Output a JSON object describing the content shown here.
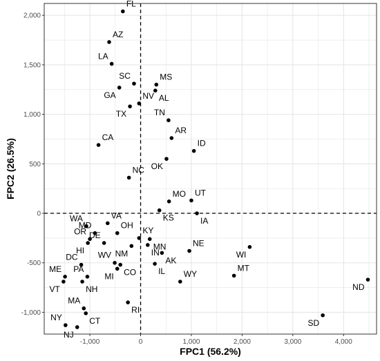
{
  "chart_data": {
    "type": "scatter",
    "xlabel": "FPC1 (56.2%)",
    "ylabel": "FPC2 (26.5%)",
    "xlim": [
      -1900,
      4650
    ],
    "ylim": [
      -1220,
      2120
    ],
    "x_ticks": [
      -1000,
      0,
      1000,
      2000,
      3000,
      4000
    ],
    "x_tick_labels": [
      "-1,000",
      "0",
      "1,000",
      "2,000",
      "3,000",
      "4,000"
    ],
    "y_ticks": [
      -1000,
      -500,
      0,
      500,
      1000,
      1500,
      2000
    ],
    "y_tick_labels": [
      "-1,000",
      "-500",
      "0",
      "500",
      "1,000",
      "1,500",
      "2,000"
    ],
    "reference_lines": {
      "x": 0,
      "y": 0,
      "style": "dashed"
    },
    "grid": true,
    "colors": {
      "points": "#000000",
      "grid": "#e5e5e5",
      "panel_border": "#333333"
    },
    "points": [
      {
        "label": "FL",
        "x": -350,
        "y": 2040,
        "label_pos": "top-right"
      },
      {
        "label": "AZ",
        "x": -620,
        "y": 1730,
        "label_pos": "top-right"
      },
      {
        "label": "LA",
        "x": -570,
        "y": 1510,
        "label_pos": "top-left"
      },
      {
        "label": "SC",
        "x": -130,
        "y": 1310,
        "label_pos": "top-left"
      },
      {
        "label": "MS",
        "x": 310,
        "y": 1300,
        "label_pos": "top-right"
      },
      {
        "label": "AL",
        "x": 290,
        "y": 1240,
        "label_pos": "bottom-right"
      },
      {
        "label": "GA",
        "x": -420,
        "y": 1270,
        "label_pos": "bottom-left"
      },
      {
        "label": "NV",
        "x": -30,
        "y": 1110,
        "label_pos": "top-right"
      },
      {
        "label": "TX",
        "x": -210,
        "y": 1080,
        "label_pos": "bottom-left"
      },
      {
        "label": "TN",
        "x": 550,
        "y": 940,
        "label_pos": "top-left"
      },
      {
        "label": "AR",
        "x": 610,
        "y": 760,
        "label_pos": "top-right"
      },
      {
        "label": "CA",
        "x": -830,
        "y": 690,
        "label_pos": "top-right"
      },
      {
        "label": "ID",
        "x": 1050,
        "y": 630,
        "label_pos": "top-right"
      },
      {
        "label": "OK",
        "x": 510,
        "y": 550,
        "label_pos": "bottom-left"
      },
      {
        "label": "NC",
        "x": -230,
        "y": 360,
        "label_pos": "top-right"
      },
      {
        "label": "MO",
        "x": 560,
        "y": 120,
        "label_pos": "top-right"
      },
      {
        "label": "UT",
        "x": 1000,
        "y": 130,
        "label_pos": "top-right"
      },
      {
        "label": "KS",
        "x": 370,
        "y": 30,
        "label_pos": "bottom-right"
      },
      {
        "label": "IA",
        "x": 1110,
        "y": 0,
        "label_pos": "bottom-right"
      },
      {
        "label": "VA",
        "x": -650,
        "y": -100,
        "label_pos": "top-right"
      },
      {
        "label": "WA",
        "x": -1070,
        "y": -130,
        "label_pos": "top-left"
      },
      {
        "label": "MD",
        "x": -900,
        "y": -200,
        "label_pos": "top-left"
      },
      {
        "label": "OH",
        "x": -460,
        "y": -200,
        "label_pos": "top-right"
      },
      {
        "label": "KY",
        "x": -30,
        "y": -250,
        "label_pos": "top-right"
      },
      {
        "label": "OR",
        "x": -1000,
        "y": -260,
        "label_pos": "top-left"
      },
      {
        "label": "DE",
        "x": -720,
        "y": -300,
        "label_pos": "top-left"
      },
      {
        "label": "MN",
        "x": 180,
        "y": -260,
        "label_pos": "bottom-right"
      },
      {
        "label": "HI",
        "x": -1040,
        "y": -300,
        "label_pos": "bottom-left"
      },
      {
        "label": "NM",
        "x": -180,
        "y": -330,
        "label_pos": "bottom-left"
      },
      {
        "label": "IN",
        "x": 140,
        "y": -320,
        "label_pos": "bottom-right"
      },
      {
        "label": "WV",
        "x": -510,
        "y": -500,
        "label_pos": "top-left"
      },
      {
        "label": "AK",
        "x": 420,
        "y": -400,
        "label_pos": "bottom-right"
      },
      {
        "label": "NE",
        "x": 960,
        "y": -380,
        "label_pos": "top-right"
      },
      {
        "label": "DC",
        "x": -1170,
        "y": -520,
        "label_pos": "top-left"
      },
      {
        "label": "WI",
        "x": 2150,
        "y": -340,
        "label_pos": "bottom-left"
      },
      {
        "label": "IL",
        "x": 280,
        "y": -510,
        "label_pos": "bottom-right"
      },
      {
        "label": "ME",
        "x": -1490,
        "y": -640,
        "label_pos": "top-left"
      },
      {
        "label": "CO",
        "x": -400,
        "y": -520,
        "label_pos": "bottom-right"
      },
      {
        "label": "PA",
        "x": -1050,
        "y": -640,
        "label_pos": "top-left"
      },
      {
        "label": "MI",
        "x": -460,
        "y": -560,
        "label_pos": "bottom-left"
      },
      {
        "label": "MT",
        "x": 1840,
        "y": -630,
        "label_pos": "top-right"
      },
      {
        "label": "WY",
        "x": 780,
        "y": -690,
        "label_pos": "top-right"
      },
      {
        "label": "VT",
        "x": -1520,
        "y": -690,
        "label_pos": "bottom-left"
      },
      {
        "label": "NH",
        "x": -1150,
        "y": -690,
        "label_pos": "bottom-right"
      },
      {
        "label": "ND",
        "x": 4480,
        "y": -670,
        "label_pos": "bottom-left"
      },
      {
        "label": "RI",
        "x": -250,
        "y": -900,
        "label_pos": "bottom-right"
      },
      {
        "label": "MA",
        "x": -1120,
        "y": -960,
        "label_pos": "top-left"
      },
      {
        "label": "CT",
        "x": -1080,
        "y": -1010,
        "label_pos": "bottom-right"
      },
      {
        "label": "SD",
        "x": 3590,
        "y": -1030,
        "label_pos": "bottom-left"
      },
      {
        "label": "NY",
        "x": -1480,
        "y": -1130,
        "label_pos": "top-left"
      },
      {
        "label": "NJ",
        "x": -1250,
        "y": -1150,
        "label_pos": "bottom-left"
      }
    ]
  }
}
